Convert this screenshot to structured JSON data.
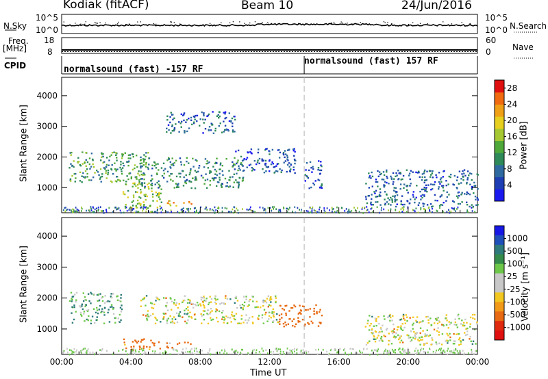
{
  "header": {
    "radar": "Kodiak (fitACF)",
    "beam": "Beam 10",
    "date": "24/Jun/2016"
  },
  "top_panels": {
    "noise": {
      "left_label": "N.Sky",
      "left_ticks": [
        "10^5",
        "10^0"
      ],
      "right_label": "N.Search",
      "right_ticks": [
        "10^5",
        "10^0"
      ]
    },
    "frequency": {
      "left_label_line1": "Freq.",
      "left_label_line2": "[MHz]",
      "left_ticks": [
        "18",
        "8"
      ],
      "right_label": "Nave",
      "right_ticks": [
        "60",
        "0"
      ]
    },
    "cpid": {
      "label": "CPID",
      "modes": [
        {
          "text": "normalsound (fast) -157 RF",
          "start_hour": 0,
          "end_hour": 14.0
        },
        {
          "text": "normalsound (fast) 157 RF",
          "start_hour": 14.0,
          "end_hour": 24
        }
      ]
    }
  },
  "colors": {
    "power_scale": [
      "#1a1af0",
      "#1e3fb4",
      "#2e6aa0",
      "#2f8a5a",
      "#4fa83a",
      "#a6c832",
      "#e6cf1e",
      "#f0a016",
      "#f06a10",
      "#e01010"
    ],
    "velocity_scale": [
      "#1818e6",
      "#1f4fb8",
      "#2f7a7a",
      "#348b4a",
      "#6dc84a",
      "#c8c8c8",
      "#c8c8c8",
      "#f2c820",
      "#f29a18",
      "#e86a12",
      "#e02a10",
      "#e01010"
    ]
  },
  "chart_data": [
    {
      "type": "heatmap",
      "title": "",
      "xlabel": "",
      "ylabel": "Slant Range [km]",
      "x_ticks": [
        "00:00",
        "04:00",
        "08:00",
        "12:00",
        "16:00",
        "20:00",
        "00:00"
      ],
      "x_range_hours": [
        0,
        24
      ],
      "y_ticks": [
        1000,
        2000,
        3000,
        4000
      ],
      "ylim": [
        180,
        4600
      ],
      "colorbar": {
        "label": "Power [dB]",
        "ticks": [
          4,
          8,
          12,
          16,
          20,
          24,
          28
        ],
        "range": [
          0,
          30
        ]
      },
      "echo_regions": [
        {
          "hours": [
            0.4,
            5.0
          ],
          "range_km": [
            1200,
            2200
          ],
          "level": 12
        },
        {
          "hours": [
            3.5,
            5.8
          ],
          "range_km": [
            350,
            1200
          ],
          "level": 16
        },
        {
          "hours": [
            4.5,
            10.5
          ],
          "range_km": [
            1000,
            2000
          ],
          "level": 10
        },
        {
          "hours": [
            6.0,
            10.0
          ],
          "range_km": [
            2800,
            3500
          ],
          "level": 7
        },
        {
          "hours": [
            6.0,
            7.5
          ],
          "range_km": [
            400,
            600
          ],
          "level": 22
        },
        {
          "hours": [
            10.0,
            13.5
          ],
          "range_km": [
            1500,
            2300
          ],
          "level": 5
        },
        {
          "hours": [
            14.0,
            15.0
          ],
          "range_km": [
            1000,
            1900
          ],
          "level": 5
        },
        {
          "hours": [
            17.5,
            24.0
          ],
          "range_km": [
            400,
            1600
          ],
          "level": 7
        }
      ]
    },
    {
      "type": "heatmap",
      "title": "",
      "xlabel": "Time UT",
      "ylabel": "Slant Range [km]",
      "x_ticks": [
        "00:00",
        "04:00",
        "08:00",
        "12:00",
        "16:00",
        "20:00",
        "00:00"
      ],
      "x_range_hours": [
        0,
        24
      ],
      "y_ticks": [
        1000,
        2000,
        3000,
        4000
      ],
      "ylim": [
        180,
        4600
      ],
      "colorbar": {
        "label": "Velocity [m s⁻¹]",
        "ticks": [
          1000,
          500,
          100,
          25,
          -25,
          -100,
          -500,
          -1000
        ]
      },
      "echo_regions": [
        {
          "hours": [
            0.4,
            3.5
          ],
          "range_km": [
            1200,
            2200
          ],
          "velocity": 100
        },
        {
          "hours": [
            3.5,
            5.8
          ],
          "range_km": [
            350,
            700
          ],
          "velocity": -200
        },
        {
          "hours": [
            4.5,
            12.5
          ],
          "range_km": [
            1200,
            2100
          ],
          "velocity": 0
        },
        {
          "hours": [
            6.0,
            7.5
          ],
          "range_km": [
            400,
            600
          ],
          "velocity": -100
        },
        {
          "hours": [
            12.5,
            15.0
          ],
          "range_km": [
            1100,
            1800
          ],
          "velocity": -300
        },
        {
          "hours": [
            17.5,
            24.0
          ],
          "range_km": [
            500,
            1500
          ],
          "velocity": 0
        }
      ]
    }
  ]
}
